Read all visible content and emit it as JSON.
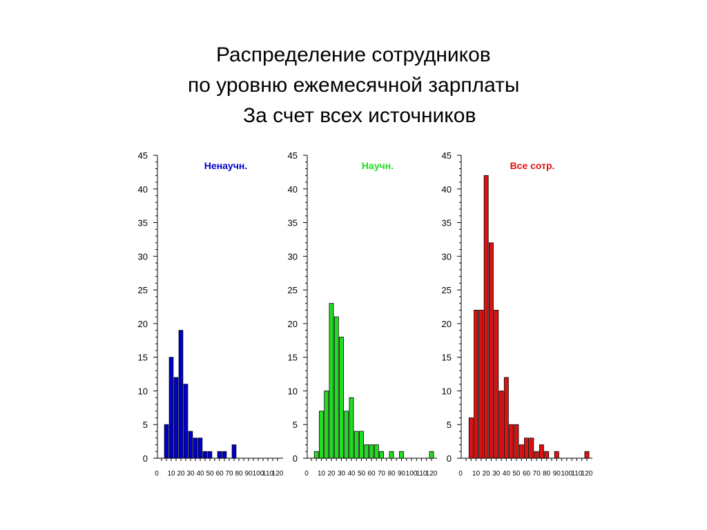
{
  "slide": {
    "title_lines": [
      "Распределение сотрудников",
      "по уровню ежемесячной зарплаты",
      "За счет всех источников"
    ]
  },
  "chart_data": [
    {
      "type": "bar",
      "series": [
        {
          "name": "Ненаучн.",
          "color": "#0000cc",
          "values": [
            0,
            5,
            15,
            12,
            19,
            11,
            4,
            3,
            3,
            1,
            1,
            0,
            1,
            1,
            0,
            2,
            0,
            0,
            0,
            0,
            0,
            0,
            0,
            0,
            0
          ]
        }
      ],
      "x": [
        0,
        5,
        10,
        15,
        20,
        25,
        30,
        35,
        40,
        45,
        50,
        55,
        60,
        65,
        70,
        75,
        80,
        85,
        90,
        95,
        100,
        105,
        110,
        115,
        120
      ],
      "ylim": [
        0,
        45
      ],
      "yticks": [
        "0",
        "5",
        "10",
        "15",
        "20",
        "25",
        "30",
        "35",
        "40",
        "45"
      ],
      "xtick_labels": [
        "0",
        "10",
        "20",
        "30",
        "40",
        "50",
        "60",
        "70",
        "80",
        "90",
        "100",
        "110",
        "120"
      ],
      "legend": "top-center"
    },
    {
      "type": "bar",
      "series": [
        {
          "name": "Научн.",
          "color": "#22dd22",
          "values": [
            0,
            1,
            7,
            10,
            23,
            21,
            18,
            7,
            9,
            4,
            4,
            2,
            2,
            2,
            1,
            0,
            1,
            0,
            1,
            0,
            0,
            0,
            0,
            0,
            1
          ]
        }
      ],
      "x": [
        0,
        5,
        10,
        15,
        20,
        25,
        30,
        35,
        40,
        45,
        50,
        55,
        60,
        65,
        70,
        75,
        80,
        85,
        90,
        95,
        100,
        105,
        110,
        115,
        120
      ],
      "ylim": [
        0,
        45
      ],
      "yticks": [
        "0",
        "5",
        "10",
        "15",
        "20",
        "25",
        "30",
        "35",
        "40",
        "45"
      ],
      "xtick_labels": [
        "0",
        "10",
        "20",
        "30",
        "40",
        "50",
        "60",
        "70",
        "80",
        "90",
        "100",
        "110",
        "120"
      ],
      "legend": "top-center"
    },
    {
      "type": "bar",
      "series": [
        {
          "name": "Все сотр.",
          "color": "#dd1111",
          "values": [
            0,
            6,
            22,
            22,
            42,
            32,
            22,
            10,
            12,
            5,
            5,
            2,
            3,
            3,
            1,
            2,
            1,
            0,
            1,
            0,
            0,
            0,
            0,
            0,
            1
          ]
        }
      ],
      "x": [
        0,
        5,
        10,
        15,
        20,
        25,
        30,
        35,
        40,
        45,
        50,
        55,
        60,
        65,
        70,
        75,
        80,
        85,
        90,
        95,
        100,
        105,
        110,
        115,
        120
      ],
      "ylim": [
        0,
        45
      ],
      "yticks": [
        "0",
        "5",
        "10",
        "15",
        "20",
        "25",
        "30",
        "35",
        "40",
        "45"
      ],
      "xtick_labels": [
        "0",
        "10",
        "20",
        "30",
        "40",
        "50",
        "60",
        "70",
        "80",
        "90",
        "100",
        "110",
        "120"
      ],
      "legend": "top-center"
    }
  ]
}
